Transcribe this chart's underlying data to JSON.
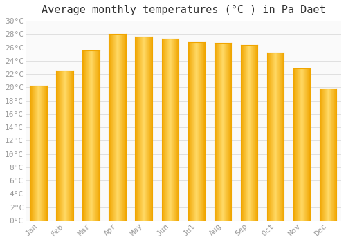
{
  "title": "Average monthly temperatures (°C ) in Pa Daet",
  "months": [
    "Jan",
    "Feb",
    "Mar",
    "Apr",
    "May",
    "Jun",
    "Jul",
    "Aug",
    "Sep",
    "Oct",
    "Nov",
    "Dec"
  ],
  "values": [
    20.2,
    22.5,
    25.5,
    28.0,
    27.6,
    27.3,
    26.8,
    26.7,
    26.4,
    25.2,
    22.8,
    19.8
  ],
  "bar_color_center": "#FFD966",
  "bar_color_edge": "#F0A500",
  "background_color": "#FFFFFF",
  "plot_bg_color": "#FAFAFA",
  "grid_color": "#E0E0E0",
  "title_fontsize": 11,
  "tick_fontsize": 8,
  "tick_color": "#999999",
  "title_color": "#333333",
  "ytick_step": 2,
  "ylim": [
    0,
    30
  ]
}
